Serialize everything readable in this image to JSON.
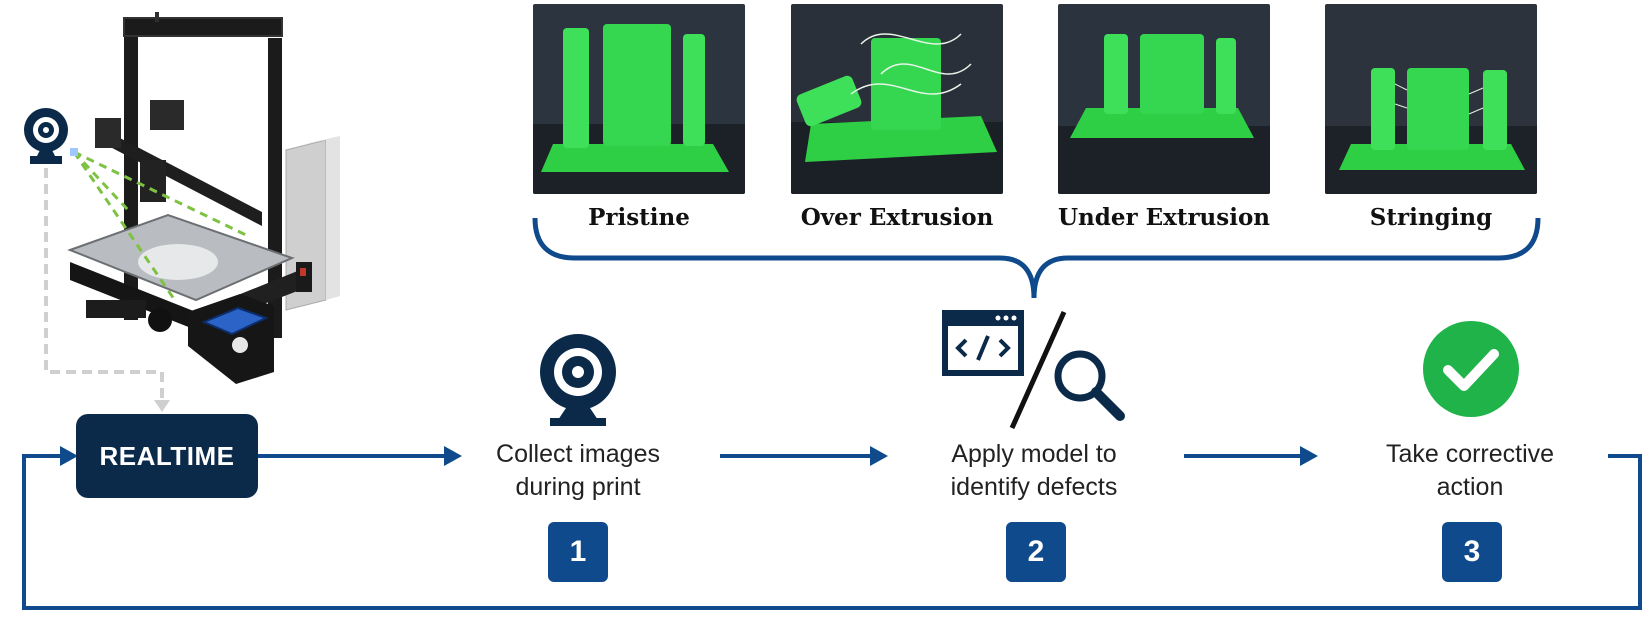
{
  "defect_classes": [
    {
      "label": "Pristine"
    },
    {
      "label": "Over Extrusion"
    },
    {
      "label": "Under Extrusion"
    },
    {
      "label": "Stringing"
    }
  ],
  "realtime_label": "REALTIME",
  "steps": [
    {
      "number": "1",
      "line1": "Collect images",
      "line2": "during print",
      "icon": "webcam-icon"
    },
    {
      "number": "2",
      "line1": "Apply model to",
      "line2": "identify defects",
      "icon": "code-window-and-magnifier-icon"
    },
    {
      "number": "3",
      "line1": "Take corrective",
      "line2": "action",
      "icon": "green-check-icon"
    }
  ],
  "colors": {
    "flow_blue": "#0f4a8c",
    "navy": "#0b2a4a",
    "check_green": "#1fb34a",
    "print_green": "#3ee05a"
  }
}
